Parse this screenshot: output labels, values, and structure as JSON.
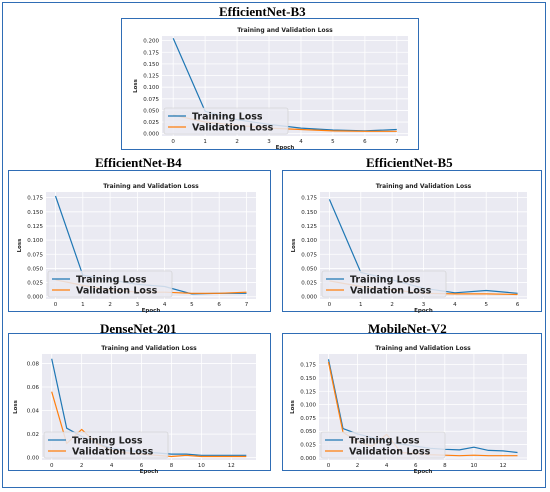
{
  "chart_data": [
    {
      "type": "line",
      "panel_title": "EfficientNet-B3",
      "title": "Training and Validation Loss",
      "xlabel": "Epoch",
      "ylabel": "Loss",
      "xlim": [
        -0.35,
        7.35
      ],
      "ylim": [
        -0.005,
        0.21
      ],
      "xticks": [
        0,
        1,
        2,
        3,
        4,
        5,
        6,
        7
      ],
      "yticks": [
        0.0,
        0.025,
        0.05,
        0.075,
        0.1,
        0.125,
        0.15,
        0.175,
        0.2
      ],
      "ytick_labels": [
        "0.000",
        "0.025",
        "0.050",
        "0.075",
        "0.100",
        "0.125",
        "0.150",
        "0.175",
        "0.200"
      ],
      "grid": true,
      "legend": "lower-left",
      "series": [
        {
          "name": "Training Loss",
          "color": "#1f77b4",
          "x": [
            0,
            1,
            2,
            3,
            4,
            5,
            6,
            7
          ],
          "y": [
            0.205,
            0.048,
            0.03,
            0.02,
            0.012,
            0.008,
            0.006,
            0.009
          ]
        },
        {
          "name": "Validation Loss",
          "color": "#ff7f0e",
          "x": [
            0,
            1,
            2,
            3,
            4,
            5,
            6,
            7
          ],
          "y": [
            0.04,
            0.025,
            0.018,
            0.012,
            0.009,
            0.006,
            0.005,
            0.005
          ]
        }
      ]
    },
    {
      "type": "line",
      "panel_title": "EfficientNet-B4",
      "title": "Training and Validation Loss",
      "xlabel": "Epoch",
      "ylabel": "Loss",
      "xlim": [
        -0.35,
        7.35
      ],
      "ylim": [
        -0.004,
        0.185
      ],
      "xticks": [
        0,
        1,
        2,
        3,
        4,
        5,
        6,
        7
      ],
      "yticks": [
        0.0,
        0.025,
        0.05,
        0.075,
        0.1,
        0.125,
        0.15,
        0.175
      ],
      "ytick_labels": [
        "0.000",
        "0.025",
        "0.050",
        "0.075",
        "0.100",
        "0.125",
        "0.150",
        "0.175"
      ],
      "grid": true,
      "legend": "lower-left",
      "series": [
        {
          "name": "Training Loss",
          "color": "#1f77b4",
          "x": [
            0,
            1,
            2,
            3,
            4,
            5,
            6,
            7
          ],
          "y": [
            0.178,
            0.038,
            0.03,
            0.022,
            0.018,
            0.005,
            0.006,
            0.006
          ]
        },
        {
          "name": "Validation Loss",
          "color": "#ff7f0e",
          "x": [
            0,
            1,
            2,
            3,
            4,
            5,
            6,
            7
          ],
          "y": [
            0.03,
            0.02,
            0.012,
            0.008,
            0.008,
            0.006,
            0.006,
            0.008
          ]
        }
      ]
    },
    {
      "type": "line",
      "panel_title": "EfficientNet-B5",
      "title": "Training and Validation Loss",
      "xlabel": "Epoch",
      "ylabel": "Loss",
      "xlim": [
        -0.3,
        6.3
      ],
      "ylim": [
        -0.004,
        0.185
      ],
      "xticks": [
        0,
        1,
        2,
        3,
        4,
        5,
        6
      ],
      "yticks": [
        0.0,
        0.025,
        0.05,
        0.075,
        0.1,
        0.125,
        0.15,
        0.175
      ],
      "ytick_labels": [
        "0.000",
        "0.025",
        "0.050",
        "0.075",
        "0.100",
        "0.125",
        "0.150",
        "0.175"
      ],
      "grid": true,
      "legend": "lower-left",
      "series": [
        {
          "name": "Training Loss",
          "color": "#1f77b4",
          "x": [
            0,
            1,
            2,
            3,
            4,
            5,
            6
          ],
          "y": [
            0.172,
            0.043,
            0.03,
            0.015,
            0.007,
            0.011,
            0.006
          ]
        },
        {
          "name": "Validation Loss",
          "color": "#ff7f0e",
          "x": [
            0,
            1,
            2,
            3,
            4,
            5,
            6
          ],
          "y": [
            0.028,
            0.018,
            0.012,
            0.006,
            0.005,
            0.005,
            0.004
          ]
        }
      ]
    },
    {
      "type": "line",
      "panel_title": "DenseNet-201",
      "title": "Training and Validation Loss",
      "xlabel": "Epoch",
      "ylabel": "Loss",
      "xlim": [
        -0.65,
        13.65
      ],
      "ylim": [
        -0.002,
        0.088
      ],
      "xticks": [
        0,
        2,
        4,
        6,
        8,
        10,
        12
      ],
      "yticks": [
        0.0,
        0.02,
        0.04,
        0.06,
        0.08
      ],
      "ytick_labels": [
        "0.00",
        "0.02",
        "0.04",
        "0.06",
        "0.08"
      ],
      "grid": true,
      "legend": "lower-left",
      "series": [
        {
          "name": "Training Loss",
          "color": "#1f77b4",
          "x": [
            0,
            1,
            2,
            3,
            4,
            5,
            6,
            7,
            8,
            9,
            10,
            11,
            12,
            13
          ],
          "y": [
            0.084,
            0.025,
            0.018,
            0.012,
            0.008,
            0.006,
            0.005,
            0.004,
            0.003,
            0.003,
            0.002,
            0.002,
            0.002,
            0.002
          ]
        },
        {
          "name": "Validation Loss",
          "color": "#ff7f0e",
          "x": [
            0,
            1,
            2,
            3,
            4,
            5,
            6,
            7,
            8,
            9,
            10,
            11,
            12,
            13
          ],
          "y": [
            0.056,
            0.012,
            0.024,
            0.012,
            0.006,
            0.004,
            0.003,
            0.002,
            0.001,
            0.002,
            0.001,
            0.001,
            0.001,
            0.001
          ]
        }
      ]
    },
    {
      "type": "line",
      "panel_title": "MobileNet-V2",
      "title": "Training and Validation Loss",
      "xlabel": "Epoch",
      "ylabel": "Loss",
      "xlim": [
        -0.65,
        13.65
      ],
      "ylim": [
        -0.004,
        0.195
      ],
      "xticks": [
        0,
        2,
        4,
        6,
        8,
        10,
        12
      ],
      "yticks": [
        0.0,
        0.025,
        0.05,
        0.075,
        0.1,
        0.125,
        0.15,
        0.175
      ],
      "ytick_labels": [
        "0.000",
        "0.025",
        "0.050",
        "0.075",
        "0.100",
        "0.125",
        "0.150",
        "0.175"
      ],
      "grid": true,
      "legend": "lower-left",
      "series": [
        {
          "name": "Training Loss",
          "color": "#1f77b4",
          "x": [
            0,
            1,
            2,
            3,
            4,
            5,
            6,
            7,
            8,
            9,
            10,
            11,
            12,
            13
          ],
          "y": [
            0.185,
            0.055,
            0.045,
            0.038,
            0.03,
            0.026,
            0.022,
            0.018,
            0.016,
            0.015,
            0.02,
            0.014,
            0.013,
            0.01
          ]
        },
        {
          "name": "Validation Loss",
          "color": "#ff7f0e",
          "x": [
            0,
            1,
            2,
            3,
            4,
            5,
            6,
            7,
            8,
            9,
            10,
            11,
            12,
            13
          ],
          "y": [
            0.18,
            0.048,
            0.03,
            0.022,
            0.044,
            0.01,
            0.008,
            0.006,
            0.005,
            0.004,
            0.005,
            0.004,
            0.004,
            0.004
          ]
        }
      ]
    }
  ]
}
